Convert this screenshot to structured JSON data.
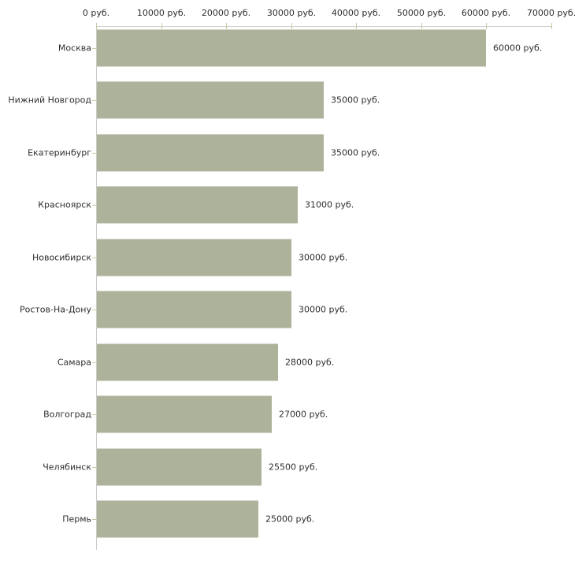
{
  "chart_data": {
    "type": "bar",
    "orientation": "horizontal",
    "title": "",
    "categories": [
      "Москва",
      "Нижний Новгород",
      "Екатеринбург",
      "Красноярск",
      "Новосибирск",
      "Ростов-На-Дону",
      "Самара",
      "Волгоград",
      "Челябинск",
      "Пермь"
    ],
    "values": [
      60000,
      35000,
      35000,
      31000,
      30000,
      30000,
      28000,
      27000,
      25500,
      25000
    ],
    "value_labels": [
      "60000 руб.",
      "35000 руб.",
      "35000 руб.",
      "31000 руб.",
      "30000 руб.",
      "30000 руб.",
      "28000 руб.",
      "27000 руб.",
      "25500 руб.",
      "25000 руб."
    ],
    "x_axis": {
      "position": "top",
      "min": 0,
      "max": 70000,
      "ticks": [
        0,
        10000,
        20000,
        30000,
        40000,
        50000,
        60000,
        70000
      ],
      "tick_labels": [
        "0 руб.",
        "10000 руб.",
        "20000 руб.",
        "30000 руб.",
        "40000 руб.",
        "50000 руб.",
        "60000 руб.",
        "70000 руб."
      ]
    },
    "grid": false,
    "legend": false,
    "colors": {
      "bar": "#acb39a",
      "axis_line": "#c9c9c9",
      "tick": "#c9c99f",
      "text": "#2e2e2e",
      "background": "#ffffff"
    }
  }
}
